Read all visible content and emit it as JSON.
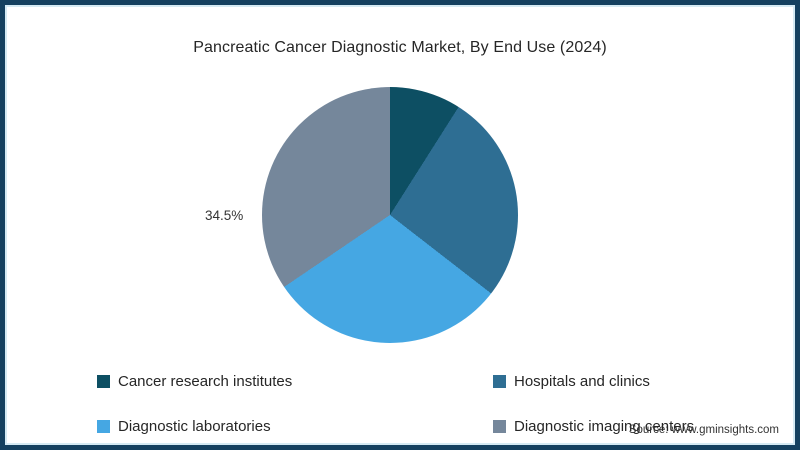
{
  "frame": {
    "border_color": "#15405f",
    "inner_line_color": "#d5eaf3",
    "background": "#ffffff"
  },
  "chart_data": {
    "type": "pie",
    "title": "Pancreatic Cancer Diagnostic Market, By End Use (2024)",
    "start_angle_deg": 0,
    "direction": "clockwise",
    "legend_position": "bottom",
    "slices": [
      {
        "name": "Cancer research institutes",
        "value": 9,
        "color": "#0d4f63",
        "label": ""
      },
      {
        "name": "Hospitals and clinics",
        "value": 26.5,
        "color": "#2e6e93",
        "label": ""
      },
      {
        "name": "Diagnostic laboratories",
        "value": 30,
        "color": "#45a7e3",
        "label": ""
      },
      {
        "name": "Diagnostic imaging centers",
        "value": 34.5,
        "color": "#75879b",
        "label": "34.5%"
      }
    ]
  },
  "source": {
    "text": "Source: www.gminsights.com"
  }
}
